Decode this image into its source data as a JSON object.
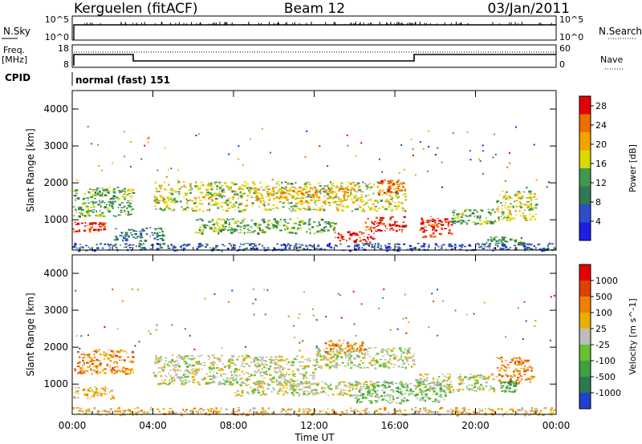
{
  "header": {
    "station": "Kerguelen (fitACF)",
    "beam": "Beam 12",
    "date": "03/Jan/2011"
  },
  "params_panel": {
    "nsky_label": "N.Sky",
    "nsky_ticks": [
      "10^5",
      "10^0"
    ],
    "nsearch_label": "N.Search",
    "freq_label": "Freq.",
    "freq_unit": "[MHz]",
    "freq_ticks": [
      "18",
      "8"
    ],
    "nave_label": "Nave",
    "nave_ticks": [
      "60",
      "0"
    ],
    "cpid_label": "CPID",
    "cpid_value": "normal (fast) 151"
  },
  "colors": {
    "power": [
      "#1e1ee6",
      "#2a4fc8",
      "#2f7a50",
      "#3f9a50",
      "#d9d900",
      "#f3a300",
      "#ee6e00",
      "#e60000"
    ],
    "velocity": [
      "#2040d0",
      "#2a7a50",
      "#3fa040",
      "#66c030",
      "#bcbcbc",
      "#e8b000",
      "#f08000",
      "#e04000",
      "#e60000"
    ],
    "ground_scatter": "#bcbcbc"
  },
  "chart_data": [
    {
      "type": "heatmap",
      "title": "Power",
      "ylabel": "Slant Range [km]",
      "xlabel": "Time UT",
      "xticks": [
        "00:00",
        "04:00",
        "08:00",
        "12:00",
        "16:00",
        "20:00",
        "00:00"
      ],
      "yticks": [
        "1000",
        "2000",
        "3000",
        "4000"
      ],
      "xlim": [
        0,
        24
      ],
      "ylim": [
        180,
        4500
      ],
      "colorbar": {
        "label": "Power [dB]",
        "ticks": [
          "4",
          "8",
          "12",
          "16",
          "20",
          "24",
          "28"
        ],
        "range": [
          0,
          30
        ]
      },
      "regions": [
        {
          "t0": 0.0,
          "t1": 24.0,
          "r0": 180,
          "r1": 380,
          "level": 1
        },
        {
          "t0": 0.0,
          "t1": 1.6,
          "r0": 700,
          "r1": 950,
          "level": 7
        },
        {
          "t0": 0.0,
          "t1": 3.0,
          "r0": 1100,
          "r1": 1900,
          "level": 3
        },
        {
          "t0": 2.0,
          "t1": 4.5,
          "r0": 450,
          "r1": 800,
          "level": 2
        },
        {
          "t0": 4.0,
          "t1": 16.5,
          "r0": 1250,
          "r1": 2050,
          "level": 4
        },
        {
          "t0": 6.0,
          "t1": 13.0,
          "r0": 650,
          "r1": 1050,
          "level": 3
        },
        {
          "t0": 9.0,
          "t1": 14.0,
          "r0": 1500,
          "r1": 1900,
          "level": 5
        },
        {
          "t0": 13.0,
          "t1": 15.0,
          "r0": 400,
          "r1": 700,
          "level": 7
        },
        {
          "t0": 14.5,
          "t1": 16.5,
          "r0": 700,
          "r1": 1100,
          "level": 7
        },
        {
          "t0": 15.0,
          "t1": 16.5,
          "r0": 1700,
          "r1": 2100,
          "level": 6
        },
        {
          "t0": 17.2,
          "t1": 18.8,
          "r0": 550,
          "r1": 1100,
          "level": 7
        },
        {
          "t0": 18.8,
          "t1": 21.0,
          "r0": 900,
          "r1": 1300,
          "level": 3
        },
        {
          "t0": 21.0,
          "t1": 23.0,
          "r0": 1000,
          "r1": 1800,
          "level": 4
        },
        {
          "t0": 20.5,
          "t1": 22.5,
          "r0": 350,
          "r1": 550,
          "level": 3
        }
      ]
    },
    {
      "type": "heatmap",
      "title": "Velocity",
      "ylabel": "Slant Range [km]",
      "xlabel": "Time UT",
      "xticks": [
        "00:00",
        "04:00",
        "08:00",
        "12:00",
        "16:00",
        "20:00",
        "00:00"
      ],
      "yticks": [
        "1000",
        "2000",
        "3000",
        "4000"
      ],
      "xlim": [
        0,
        24
      ],
      "ylim": [
        180,
        4500
      ],
      "colorbar": {
        "label": "Velocity [m s^-1]",
        "ticks": [
          "1000",
          "500",
          "100",
          "25",
          "-25",
          "-100",
          "-500",
          "-1000"
        ],
        "range": [
          -1000,
          1000
        ]
      },
      "regions": [
        {
          "t0": 0.0,
          "t1": 24.0,
          "r0": 180,
          "r1": 380,
          "level": 5
        },
        {
          "t0": 0.0,
          "t1": 3.0,
          "r0": 1300,
          "r1": 1950,
          "level": 6
        },
        {
          "t0": 0.0,
          "t1": 2.0,
          "r0": 600,
          "r1": 950,
          "level": 5
        },
        {
          "t0": 4.0,
          "t1": 12.0,
          "r0": 1000,
          "r1": 1800,
          "level": 4
        },
        {
          "t0": 8.0,
          "t1": 15.0,
          "r0": 700,
          "r1": 1100,
          "level": 4
        },
        {
          "t0": 12.0,
          "t1": 17.0,
          "r0": 1450,
          "r1": 2000,
          "level": 4
        },
        {
          "t0": 12.5,
          "t1": 14.5,
          "r0": 1850,
          "r1": 2200,
          "level": 6
        },
        {
          "t0": 14.0,
          "t1": 18.5,
          "r0": 500,
          "r1": 1100,
          "level": 3
        },
        {
          "t0": 17.0,
          "t1": 21.0,
          "r0": 800,
          "r1": 1300,
          "level": 4
        },
        {
          "t0": 21.0,
          "t1": 22.8,
          "r0": 1000,
          "r1": 1750,
          "level": 6
        },
        {
          "t0": 21.2,
          "t1": 22.0,
          "r0": 800,
          "r1": 1100,
          "level": 2
        }
      ]
    }
  ]
}
